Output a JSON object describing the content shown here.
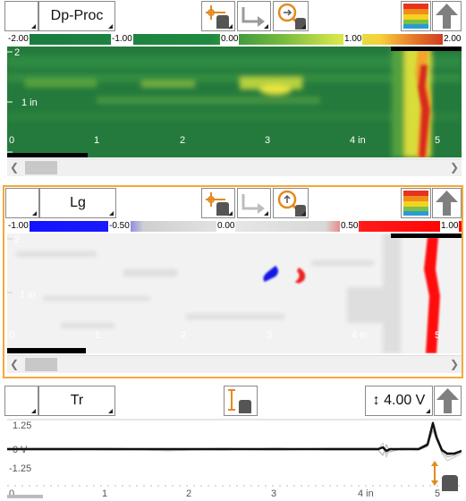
{
  "panels": {
    "top": {
      "name_label": "Dp-Proc",
      "scale": [
        "-2.00",
        "-1.00",
        "0.00",
        "1.00",
        "2.00"
      ],
      "y_labels": [
        "2",
        "1 in",
        "0"
      ],
      "x_labels": [
        "0",
        "1",
        "2",
        "3",
        "4 in",
        "5"
      ]
    },
    "middle": {
      "name_label": "Lg",
      "scale": [
        "-1.00",
        "-0.50",
        "0.00",
        "0.50",
        "1.00"
      ],
      "y_labels": [
        "2",
        "1 in",
        "0"
      ],
      "x_labels": [
        "0",
        "1",
        "2",
        "3",
        "4 in",
        "5"
      ]
    },
    "bottom": {
      "name_label": "Tr",
      "voltage_value": "4.00 V",
      "y_labels": [
        "1.25",
        "0 V",
        "-1.25"
      ],
      "x_labels": [
        "0",
        "1",
        "2",
        "3",
        "4 in",
        "5"
      ]
    }
  },
  "icons": {
    "palette": "palette-icon",
    "up": "up-arrow-icon",
    "cursor": "cursor-tool-icon",
    "export": "export-arrow-icon",
    "zoom": "zoom-tool-icon",
    "vertical_cursor": "vertical-cursor-icon"
  },
  "colors": {
    "highlight_border": "#f3a93a",
    "green_dark": "#1f7a3c",
    "neg_blue": "#0000ff",
    "pos_red": "#ff0000"
  }
}
